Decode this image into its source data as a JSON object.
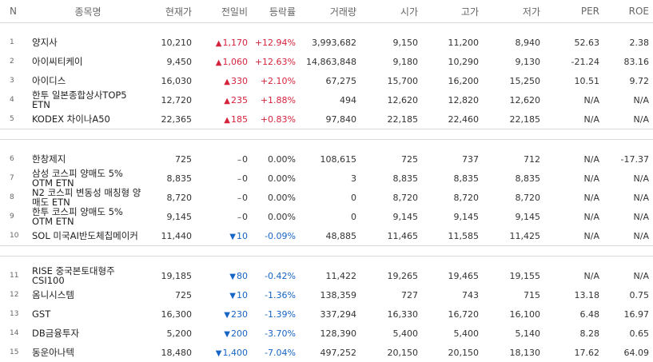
{
  "headers": [
    "N",
    "종목명",
    "현재가",
    "전일비",
    "등락률",
    "거래량",
    "시가",
    "고가",
    "저가",
    "PER",
    "ROE"
  ],
  "groups": [
    [
      {
        "n": "1",
        "name": "양지사",
        "price": "10,210",
        "dir": "up",
        "change": "1,170",
        "rate": "+12.94%",
        "volume": "3,993,682",
        "open": "9,150",
        "high": "11,200",
        "low": "8,940",
        "per": "52.63",
        "roe": "2.38"
      },
      {
        "n": "2",
        "name": "아이씨티케이",
        "price": "9,450",
        "dir": "up",
        "change": "1,060",
        "rate": "+12.63%",
        "volume": "14,863,848",
        "open": "9,180",
        "high": "10,290",
        "low": "9,130",
        "per": "-21.24",
        "roe": "83.16"
      },
      {
        "n": "3",
        "name": "아이디스",
        "price": "16,030",
        "dir": "up",
        "change": "330",
        "rate": "+2.10%",
        "volume": "67,275",
        "open": "15,700",
        "high": "16,200",
        "low": "15,250",
        "per": "10.51",
        "roe": "9.72"
      },
      {
        "n": "4",
        "name": "한투 일본종합상사TOP5 ETN",
        "price": "12,720",
        "dir": "up",
        "change": "235",
        "rate": "+1.88%",
        "volume": "494",
        "open": "12,620",
        "high": "12,820",
        "low": "12,620",
        "per": "N/A",
        "roe": "N/A"
      },
      {
        "n": "5",
        "name": "KODEX 차이나A50",
        "price": "22,365",
        "dir": "up",
        "change": "185",
        "rate": "+0.83%",
        "volume": "97,840",
        "open": "22,185",
        "high": "22,460",
        "low": "22,185",
        "per": "N/A",
        "roe": "N/A"
      }
    ],
    [
      {
        "n": "6",
        "name": "한창제지",
        "price": "725",
        "dir": "flat",
        "change": "0",
        "rate": "0.00%",
        "volume": "108,615",
        "open": "725",
        "high": "737",
        "low": "712",
        "per": "N/A",
        "roe": "-17.37"
      },
      {
        "n": "7",
        "name": "삼성 코스피 양매도 5% OTM ETN",
        "price": "8,835",
        "dir": "flat",
        "change": "0",
        "rate": "0.00%",
        "volume": "3",
        "open": "8,835",
        "high": "8,835",
        "low": "8,835",
        "per": "N/A",
        "roe": "N/A"
      },
      {
        "n": "8",
        "name": "N2 코스피 변동성 매칭형 양매도 ETN",
        "price": "8,720",
        "dir": "flat",
        "change": "0",
        "rate": "0.00%",
        "volume": "0",
        "open": "8,720",
        "high": "8,720",
        "low": "8,720",
        "per": "N/A",
        "roe": "N/A"
      },
      {
        "n": "9",
        "name": "한투 코스피 양매도 5% OTM ETN",
        "price": "9,145",
        "dir": "flat",
        "change": "0",
        "rate": "0.00%",
        "volume": "0",
        "open": "9,145",
        "high": "9,145",
        "low": "9,145",
        "per": "N/A",
        "roe": "N/A"
      },
      {
        "n": "10",
        "name": "SOL 미국AI반도체칩메이커",
        "price": "11,440",
        "dir": "down",
        "change": "10",
        "rate": "-0.09%",
        "volume": "48,885",
        "open": "11,465",
        "high": "11,585",
        "low": "11,425",
        "per": "N/A",
        "roe": "N/A"
      }
    ],
    [
      {
        "n": "11",
        "name": "RISE 중국본토대형주CSI100",
        "price": "19,185",
        "dir": "down",
        "change": "80",
        "rate": "-0.42%",
        "volume": "11,422",
        "open": "19,265",
        "high": "19,465",
        "low": "19,155",
        "per": "N/A",
        "roe": "N/A"
      },
      {
        "n": "12",
        "name": "옴니시스템",
        "price": "725",
        "dir": "down",
        "change": "10",
        "rate": "-1.36%",
        "volume": "138,359",
        "open": "727",
        "high": "743",
        "low": "715",
        "per": "13.18",
        "roe": "0.75"
      },
      {
        "n": "13",
        "name": "GST",
        "price": "16,300",
        "dir": "down",
        "change": "230",
        "rate": "-1.39%",
        "volume": "337,294",
        "open": "16,330",
        "high": "16,720",
        "low": "16,100",
        "per": "6.48",
        "roe": "16.97"
      },
      {
        "n": "14",
        "name": "DB금융투자",
        "price": "5,200",
        "dir": "down",
        "change": "200",
        "rate": "-3.70%",
        "volume": "128,390",
        "open": "5,400",
        "high": "5,400",
        "low": "5,140",
        "per": "8.28",
        "roe": "0.65"
      },
      {
        "n": "15",
        "name": "동운아나텍",
        "price": "18,480",
        "dir": "down",
        "change": "1,400",
        "rate": "-7.04%",
        "volume": "497,252",
        "open": "20,150",
        "high": "20,150",
        "low": "18,130",
        "per": "17.62",
        "roe": "64.09"
      }
    ]
  ]
}
